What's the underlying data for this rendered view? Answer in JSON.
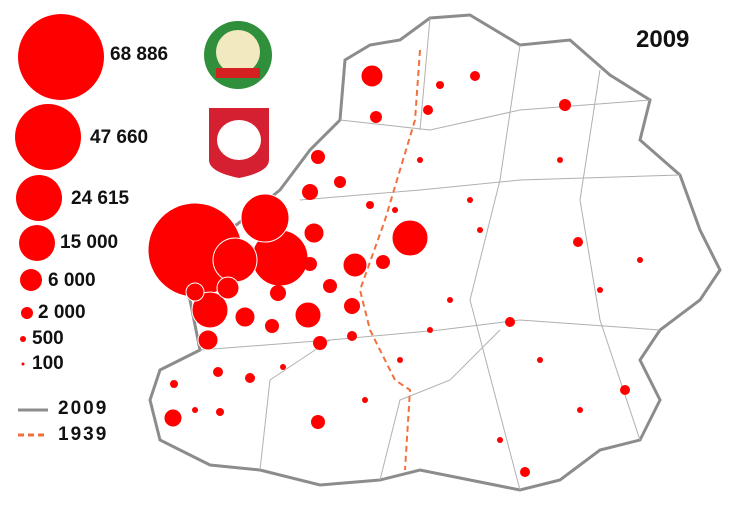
{
  "year_label": "2009",
  "legend": {
    "sizes": [
      "68 886",
      "47 660",
      "24 615",
      "15 000",
      "6 000",
      "2 000",
      "500",
      "100"
    ],
    "lines": [
      {
        "label": "2009",
        "color": "#8c8c8c",
        "style": "solid"
      },
      {
        "label": "1939",
        "color": "#f07040",
        "style": "dashed"
      }
    ]
  },
  "colors": {
    "circle": "#ff0000",
    "region_border": "#aaaaaa",
    "country_border": "#8c8c8c",
    "border_1939": "#f07040"
  },
  "emblems": [
    "belarus-coat-of-arms",
    "poland-coat-of-arms"
  ]
}
